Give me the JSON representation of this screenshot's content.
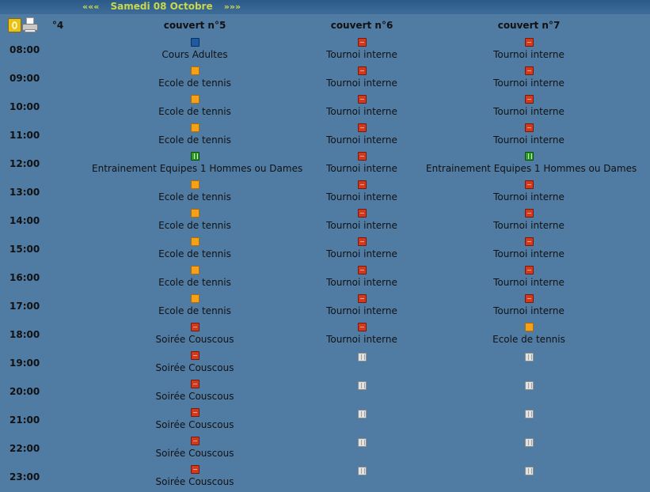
{
  "header": {
    "prev_label": "«««",
    "date": "Samedi 08 Octobre",
    "next_label": "»»»"
  },
  "toolbar": {
    "calendar_icon": "calendar-icon",
    "print_icon": "printer-icon"
  },
  "columns": [
    "°4",
    "couvert n°5",
    "couvert n°6",
    "couvert n°7"
  ],
  "colors": {
    "background": "#507ca4",
    "nav_text": "#c8d84a",
    "cours_adultes": "#1d5ca0",
    "ecole_de_tennis": "#f4a21c",
    "tournoi_interne": "#d23a1e",
    "entrainement": "#2f9a2c",
    "libre": "#e2e2e2"
  },
  "rows": [
    {
      "time": "08:00",
      "cells": [
        {
          "type": "blue",
          "label": "Cours Adultes"
        },
        {
          "type": "red",
          "label": "Tournoi interne"
        },
        {
          "type": "red",
          "label": "Tournoi interne"
        }
      ]
    },
    {
      "time": "09:00",
      "cells": [
        {
          "type": "orange",
          "label": "Ecole de tennis"
        },
        {
          "type": "red",
          "label": "Tournoi interne"
        },
        {
          "type": "red",
          "label": "Tournoi interne"
        }
      ]
    },
    {
      "time": "10:00",
      "cells": [
        {
          "type": "orange",
          "label": "Ecole de tennis"
        },
        {
          "type": "red",
          "label": "Tournoi interne"
        },
        {
          "type": "red",
          "label": "Tournoi interne"
        }
      ]
    },
    {
      "time": "11:00",
      "cells": [
        {
          "type": "orange",
          "label": "Ecole de tennis"
        },
        {
          "type": "red",
          "label": "Tournoi interne"
        },
        {
          "type": "red",
          "label": "Tournoi interne"
        }
      ]
    },
    {
      "time": "12:00",
      "cells": [
        {
          "type": "green",
          "label": "Entrainement Equipes 1 Hommes ou Dames"
        },
        {
          "type": "red",
          "label": "Tournoi interne"
        },
        {
          "type": "green",
          "label": "Entrainement Equipes 1 Hommes ou Dames"
        }
      ]
    },
    {
      "time": "13:00",
      "cells": [
        {
          "type": "orange",
          "label": "Ecole de tennis"
        },
        {
          "type": "red",
          "label": "Tournoi interne"
        },
        {
          "type": "red",
          "label": "Tournoi interne"
        }
      ]
    },
    {
      "time": "14:00",
      "cells": [
        {
          "type": "orange",
          "label": "Ecole de tennis"
        },
        {
          "type": "red",
          "label": "Tournoi interne"
        },
        {
          "type": "red",
          "label": "Tournoi interne"
        }
      ]
    },
    {
      "time": "15:00",
      "cells": [
        {
          "type": "orange",
          "label": "Ecole de tennis"
        },
        {
          "type": "red",
          "label": "Tournoi interne"
        },
        {
          "type": "red",
          "label": "Tournoi interne"
        }
      ]
    },
    {
      "time": "16:00",
      "cells": [
        {
          "type": "orange",
          "label": "Ecole de tennis"
        },
        {
          "type": "red",
          "label": "Tournoi interne"
        },
        {
          "type": "red",
          "label": "Tournoi interne"
        }
      ]
    },
    {
      "time": "17:00",
      "cells": [
        {
          "type": "orange",
          "label": "Ecole de tennis"
        },
        {
          "type": "red",
          "label": "Tournoi interne"
        },
        {
          "type": "red",
          "label": "Tournoi interne"
        }
      ]
    },
    {
      "time": "18:00",
      "cells": [
        {
          "type": "red",
          "label": "Soirée Couscous"
        },
        {
          "type": "red",
          "label": "Tournoi interne"
        },
        {
          "type": "orange",
          "label": "Ecole de tennis"
        }
      ]
    },
    {
      "time": "19:00",
      "cells": [
        {
          "type": "red",
          "label": "Soirée Couscous"
        },
        {
          "type": "empty",
          "label": ""
        },
        {
          "type": "empty",
          "label": ""
        }
      ]
    },
    {
      "time": "20:00",
      "cells": [
        {
          "type": "red",
          "label": "Soirée Couscous"
        },
        {
          "type": "empty",
          "label": ""
        },
        {
          "type": "empty",
          "label": ""
        }
      ]
    },
    {
      "time": "21:00",
      "cells": [
        {
          "type": "red",
          "label": "Soirée Couscous"
        },
        {
          "type": "empty",
          "label": ""
        },
        {
          "type": "empty",
          "label": ""
        }
      ]
    },
    {
      "time": "22:00",
      "cells": [
        {
          "type": "red",
          "label": "Soirée Couscous"
        },
        {
          "type": "empty",
          "label": ""
        },
        {
          "type": "empty",
          "label": ""
        }
      ]
    },
    {
      "time": "23:00",
      "cells": [
        {
          "type": "red",
          "label": "Soirée Couscous"
        },
        {
          "type": "empty",
          "label": ""
        },
        {
          "type": "empty",
          "label": ""
        }
      ]
    }
  ]
}
